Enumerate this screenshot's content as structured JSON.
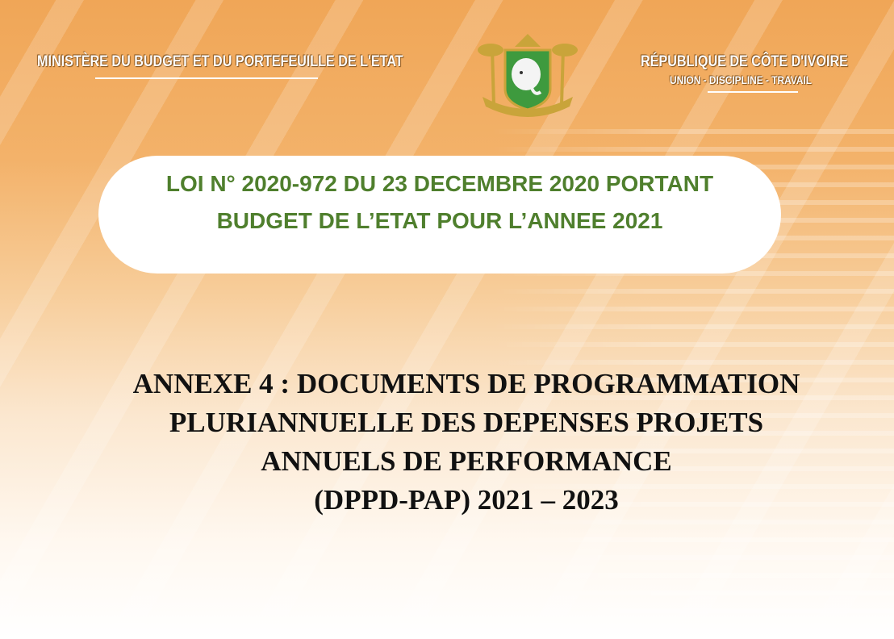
{
  "header": {
    "ministry": "MINISTÈRE DU BUDGET ET DU PORTEFEUILLE DE L'ETAT",
    "republic": "RÉPUBLIQUE DE CÔTE D'IVOIRE",
    "motto": "UNION - DISCIPLINE - TRAVAIL",
    "emblem": "coat-of-arms-cote-divoire"
  },
  "law": {
    "line1": "LOI N° 2020-972 DU 23 DECEMBRE 2020 PORTANT",
    "line2": "BUDGET DE L’ETAT POUR L’ANNEE 2021",
    "color": "#4f7f2d"
  },
  "annexe": {
    "line1": "ANNEXE 4 : DOCUMENTS DE PROGRAMMATION",
    "line2": "PLURIANNUELLE DES DEPENSES PROJETS",
    "line3": "ANNUELS DE PERFORMANCE",
    "line4": "(DPPD-PAP) 2021 – 2023"
  }
}
